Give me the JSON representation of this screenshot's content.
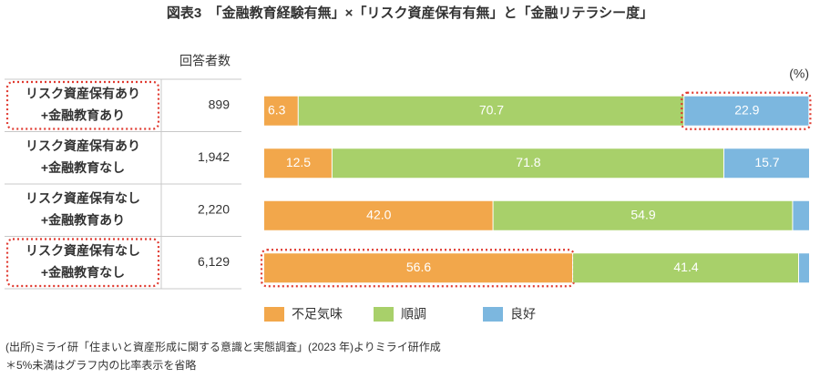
{
  "chart_data": {
    "type": "bar",
    "orientation": "horizontal",
    "stacked": true,
    "title": "図表3　「金融教育経験有無」×「リスク資産保有有無」と「金融リテラシー度」",
    "count_header": "回答者数",
    "unit_label": "(%)",
    "categories": [
      [
        "リスク資産保有あり",
        "+金融教育あり"
      ],
      [
        "リスク資産保有あり",
        "+金融教育なし"
      ],
      [
        "リスク資産保有なし",
        "+金融教育あり"
      ],
      [
        "リスク資産保有なし",
        "+金融教育なし"
      ]
    ],
    "counts": [
      899,
      {
        "value": 1942,
        "label": "1,942"
      },
      {
        "value": 2220,
        "label": "2,220"
      },
      {
        "value": 6129,
        "label": "6,129"
      }
    ],
    "series": [
      {
        "name": "不足気味",
        "color": "#f2a74b",
        "values": [
          6.3,
          12.5,
          42.0,
          56.6
        ],
        "value_labels": [
          "6.3",
          "12.5",
          "42.0",
          "56.6"
        ]
      },
      {
        "name": "順調",
        "color": "#a8d06a",
        "values": [
          70.7,
          71.8,
          54.9,
          41.4
        ],
        "value_labels": [
          "70.7",
          "71.8",
          "54.9",
          "41.4"
        ]
      },
      {
        "name": "良好",
        "color": "#7cb7df",
        "values": [
          22.9,
          15.7,
          3.1,
          2.0
        ],
        "value_labels": [
          "22.9",
          "15.7",
          null,
          null
        ]
      }
    ],
    "xlim": [
      0,
      100
    ],
    "highlight_categories": [
      0,
      3
    ],
    "highlight_segments": [
      {
        "series": 2,
        "index": 0
      },
      {
        "series": 0,
        "index": 3
      }
    ],
    "highlight_color": "#e03a30",
    "notes": [
      "(出所)ミライ研「住まいと資産形成に関する意識と実態調査」(2023 年)よりミライ研作成",
      "＊5%未満はグラフ内の比率表示を省略"
    ]
  }
}
